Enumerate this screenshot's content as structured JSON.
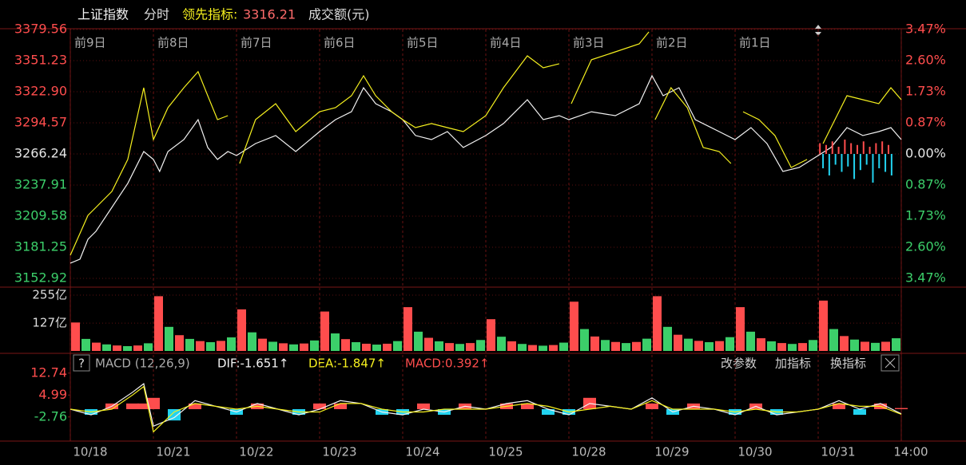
{
  "header": {
    "period": "分时",
    "indicator_value": 3316.21
  },
  "chart_data": [
    {
      "type": "line",
      "title": "分时",
      "day_labels": [
        "前9日",
        "前8日",
        "前7日",
        "前6日",
        "前5日",
        "前4日",
        "前3日",
        "前2日",
        "前1日"
      ],
      "xlim": [
        0,
        2400
      ],
      "xticks": [
        0,
        240,
        480,
        720,
        960,
        1200,
        1440,
        1680,
        1920,
        2160,
        2400
      ],
      "ylim": [
        3152.92,
        3379.56
      ],
      "yticks": [
        3379.56,
        3351.23,
        {
          "value": 3322.9,
          "label": "3322.90"
        },
        3294.57,
        3266.24,
        3237.91,
        3209.58,
        3181.25,
        3152.92
      ],
      "y2lim": [
        -3.47,
        3.47
      ],
      "y2ticks": [
        {
          "value": 3.47,
          "label": "3.47%"
        },
        {
          "value": 2.6,
          "label": "2.60%"
        },
        {
          "value": 1.73,
          "label": "1.73%"
        },
        {
          "value": 0.87,
          "label": "0.87%"
        },
        {
          "value": 0,
          "label": "0.00%"
        },
        {
          "value": -0.87,
          "label": "0.87%"
        },
        {
          "value": -1.73,
          "label": "1.73%"
        },
        {
          "value": -2.6,
          "label": "2.60%"
        },
        {
          "value": -3.47,
          "label": "3.47%"
        }
      ],
      "grid": true,
      "up_color": "#ff4d4d",
      "down_color": "#3ccf6a",
      "flat_color": "#e6e6e6",
      "series": [
        {
          "name": "上证指数",
          "color": "#f2f2f2",
          "type": "line",
          "x": [
            0,
            28,
            51,
            74,
            120,
            166,
            212,
            240,
            258,
            282,
            328,
            369,
            397,
            425,
            455,
            480,
            535,
            593,
            651,
            720,
            766,
            812,
            847,
            882,
            928,
            960,
            997,
            1043,
            1089,
            1135,
            1200,
            1251,
            1320,
            1366,
            1412,
            1440,
            1505,
            1574,
            1643,
            1680,
            1712,
            1758,
            1805,
            1874,
            1920,
            1966,
            2012,
            2058,
            2105,
            2160,
            2197,
            2243,
            2289,
            2335,
            2370,
            2400
          ],
          "values": [
            3166.8,
            3170.4,
            3188.5,
            3195.8,
            3217.6,
            3239.4,
            3268.4,
            3261.2,
            3250.3,
            3268.4,
            3279.3,
            3297.5,
            3272.1,
            3261.2,
            3268.4,
            3264.8,
            3275.7,
            3283.0,
            3268.4,
            3286.6,
            3297.5,
            3304.7,
            3326.5,
            3312.0,
            3304.7,
            3297.5,
            3283.0,
            3279.3,
            3286.6,
            3272.1,
            3283.0,
            3293.9,
            3315.6,
            3297.5,
            3301.1,
            3297.5,
            3304.7,
            3301.1,
            3312.0,
            3337.4,
            3319.3,
            3326.5,
            3297.5,
            3286.6,
            3279.3,
            3290.2,
            3275.7,
            3250.3,
            3253.9,
            3264.8,
            3272.1,
            3290.2,
            3283.0,
            3286.6,
            3290.2,
            3279.3
          ]
        },
        {
          "name": "领先指标:",
          "color": "#f5f01e",
          "type": "line",
          "x": [
            0,
            51,
            74,
            120,
            166,
            212,
            240,
            282,
            328,
            369,
            397,
            425,
            455,
            480,
            489,
            535,
            593,
            651,
            720,
            766,
            812,
            847,
            882,
            928,
            960,
            997,
            1043,
            1089,
            1135,
            1200,
            1251,
            1320,
            1366,
            1412,
            1440,
            1447,
            1505,
            1574,
            1643,
            1671,
            1680,
            1689,
            1735,
            1782,
            1828,
            1874,
            1908,
            1920,
            1943,
            1989,
            2035,
            2082,
            2128,
            2160,
            2174,
            2197,
            2243,
            2289,
            2335,
            2370,
            2400
          ],
          "values": [
            3174.0,
            3210.3,
            3217.6,
            3232.1,
            3261.2,
            3326.5,
            3279.3,
            3308.4,
            3326.5,
            3341.1,
            3319.3,
            3297.5,
            3301.1,
            null,
            3257.5,
            3297.5,
            3312.0,
            3286.6,
            3304.7,
            3308.4,
            3319.3,
            3337.4,
            3319.3,
            3304.7,
            3297.5,
            3290.2,
            3293.9,
            3290.2,
            3286.6,
            3301.1,
            3326.5,
            3355.6,
            3344.7,
            3348.4,
            null,
            3312.0,
            3352.0,
            3359.2,
            3366.5,
            3377.4,
            null,
            3297.5,
            3326.5,
            3308.4,
            3272.1,
            3268.4,
            3257.5,
            null,
            3304.7,
            3297.5,
            3283.0,
            3253.9,
            3261.2,
            null,
            3275.7,
            3290.2,
            3319.3,
            3315.6,
            3312.0,
            3326.5,
            3315.6
          ]
        },
        {
          "type": "bar",
          "axis": "y2",
          "x": [
            2165,
            2174,
            2183,
            2192,
            2201,
            2210,
            2219,
            2228,
            2237,
            2246,
            2255,
            2264,
            2273,
            2282,
            2291,
            2300,
            2309,
            2318,
            2327,
            2336,
            2345,
            2354,
            2363,
            2372
          ],
          "values": [
            0.3,
            -0.4,
            0.25,
            -0.6,
            0.35,
            -0.3,
            0.2,
            -0.5,
            0.4,
            -0.35,
            0.3,
            -0.7,
            0.25,
            -0.45,
            0.35,
            -0.3,
            0.2,
            -0.8,
            0.3,
            -0.4,
            0.35,
            -0.5,
            0.25,
            -0.6
          ]
        }
      ]
    },
    {
      "type": "bar",
      "title": "成交额(元)",
      "colors": [
        "#ff4d4d",
        "#3ccf6a"
      ],
      "ylim": [
        0,
        255
      ],
      "yticks": [
        {
          "value": 255,
          "label": "255亿"
        },
        {
          "value": 127,
          "label": "127亿"
        }
      ],
      "grid": true,
      "values": [
        130,
        55,
        38,
        30,
        25,
        22,
        25,
        35,
        250,
        110,
        72,
        55,
        45,
        40,
        46,
        62,
        190,
        85,
        56,
        42,
        35,
        30,
        34,
        48,
        180,
        80,
        54,
        40,
        33,
        29,
        33,
        45,
        200,
        88,
        60,
        44,
        36,
        32,
        36,
        50,
        145,
        65,
        44,
        32,
        27,
        24,
        27,
        38,
        225,
        100,
        66,
        50,
        41,
        36,
        41,
        56,
        250,
        110,
        74,
        56,
        46,
        40,
        45,
        63,
        200,
        88,
        58,
        44,
        36,
        32,
        36,
        50,
        230,
        100,
        68,
        52,
        42,
        37,
        42,
        58
      ]
    },
    {
      "type": "line",
      "title": "MACD (12,26,9)",
      "help": "?",
      "buttons": [
        "改参数",
        "加指标",
        "换指标"
      ],
      "xlim": [
        0,
        2400
      ],
      "xticks": [
        {
          "value": 0,
          "label": "10/18"
        },
        {
          "value": 240,
          "label": "10/21"
        },
        {
          "value": 480,
          "label": "10/22"
        },
        {
          "value": 720,
          "label": "10/23"
        },
        {
          "value": 960,
          "label": "10/24"
        },
        {
          "value": 1200,
          "label": "10/25"
        },
        {
          "value": 1440,
          "label": "10/28"
        },
        {
          "value": 1680,
          "label": "10/29"
        },
        {
          "value": 1920,
          "label": "10/30"
        },
        {
          "value": 2160,
          "label": "10/31"
        },
        {
          "value": 2370,
          "label": "14:00"
        }
      ],
      "ylim": [
        -11,
        15.5
      ],
      "yticks": [
        12.74,
        4.99,
        -2.76
      ],
      "up_color": "#ff4d4d",
      "down_color": "#22d3f0",
      "x": [
        0,
        60,
        120,
        180,
        212,
        240,
        300,
        360,
        420,
        480,
        540,
        600,
        660,
        720,
        780,
        840,
        900,
        960,
        1020,
        1080,
        1140,
        1200,
        1260,
        1320,
        1380,
        1440,
        1500,
        1560,
        1620,
        1680,
        1740,
        1800,
        1860,
        1920,
        1980,
        2040,
        2100,
        2160,
        2220,
        2280,
        2340,
        2400
      ],
      "series": [
        {
          "name": "MACD:0.392↑",
          "color": "#ff4d4d",
          "type": "bar",
          "values": [
            0,
            -2,
            2,
            2,
            2,
            4,
            -4,
            2,
            0,
            -2,
            2,
            0,
            -2,
            2,
            2,
            0,
            -2,
            -2,
            2,
            -2,
            2,
            0,
            2,
            2,
            -2,
            -2,
            4,
            0,
            0,
            2,
            -2,
            2,
            0,
            -2,
            2,
            -2,
            0,
            0,
            2,
            -2,
            2,
            0.392
          ]
        },
        {
          "name": "DIF:-1.651↑",
          "color": "#f2f2f2",
          "type": "line",
          "values": [
            0,
            -2,
            1,
            6,
            9,
            -6,
            -3,
            3,
            1,
            -1,
            2,
            0,
            -2,
            0,
            3,
            2,
            -1,
            -2,
            0,
            -1,
            1,
            0,
            2,
            3,
            0,
            -2,
            2,
            1,
            0,
            4,
            -1,
            1,
            0,
            -2,
            1,
            -2,
            -1,
            0,
            3,
            0,
            2,
            -1.651
          ]
        },
        {
          "name": "DEA:-1.847↑",
          "color": "#f5f01e",
          "type": "line",
          "values": [
            0,
            -1,
            0,
            5,
            8,
            -8,
            -1,
            2,
            1,
            0,
            1,
            0,
            -1,
            -1,
            2,
            2,
            0,
            -1,
            -1,
            0,
            0,
            0,
            1,
            2,
            1,
            -1,
            0,
            1,
            0,
            3,
            0,
            0,
            0,
            -1,
            0,
            -1,
            -1,
            0,
            2,
            1,
            1,
            -1.847
          ]
        }
      ]
    }
  ]
}
